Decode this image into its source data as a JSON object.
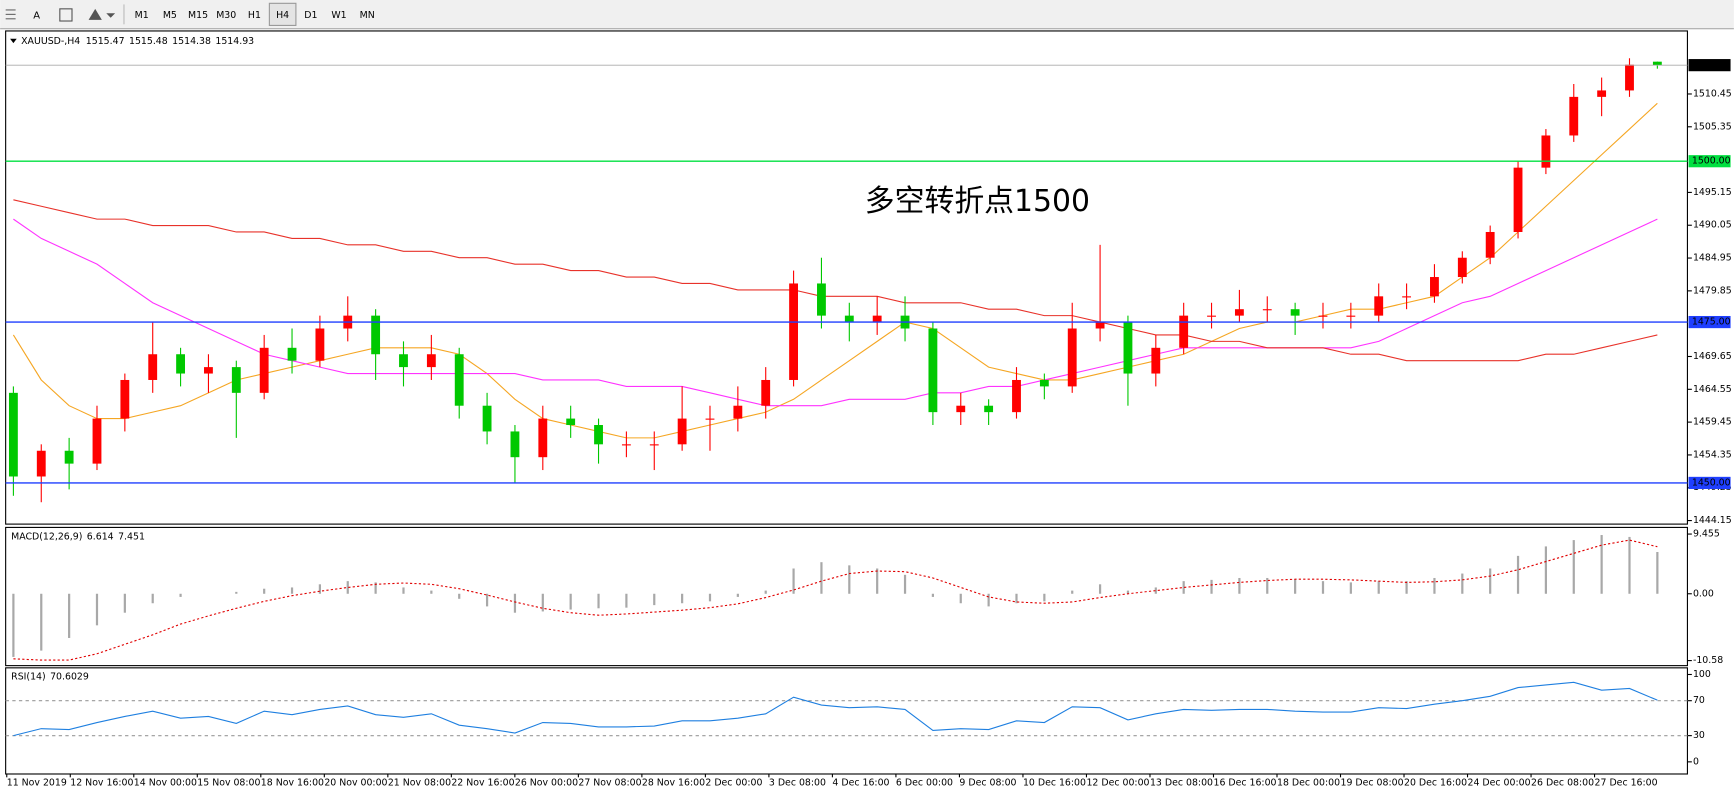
{
  "toolbar": {
    "text_tool": "A",
    "timeframes": [
      "M1",
      "M5",
      "M15",
      "M30",
      "H1",
      "H4",
      "D1",
      "W1",
      "MN"
    ]
  },
  "time_axis": {
    "labels": [
      "11 Nov 2019",
      "12 Nov 16:00",
      "14 Nov 00:00",
      "15 Nov 08:00",
      "18 Nov 16:00",
      "20 Nov 00:00",
      "21 Nov 08:00",
      "22 Nov 16:00",
      "26 Nov 00:00",
      "27 Nov 08:00",
      "28 Nov 16:00",
      "2 Dec 00:00",
      "3 Dec 08:00",
      "4 Dec 16:00",
      "6 Dec 00:00",
      "9 Dec 08:00",
      "10 Dec 16:00",
      "12 Dec 00:00",
      "13 Dec 08:00",
      "16 Dec 16:00",
      "18 Dec 00:00",
      "19 Dec 08:00",
      "20 Dec 16:00",
      "24 Dec 00:00",
      "26 Dec 08:00",
      "27 Dec 16:00"
    ]
  },
  "chart_data": [
    {
      "type": "candlestick",
      "symbol": "XAUUSD-,H4",
      "quote": [
        1515.47,
        1515.48,
        1514.38,
        1514.93
      ],
      "annotation": "多空转折点1500",
      "annotation_color": "#e5321e",
      "up_color": "#ff0000",
      "down_color": "#00c800",
      "ohlc": [
        [
          1464,
          1465,
          1448,
          1451
        ],
        [
          1451,
          1456,
          1447,
          1455
        ],
        [
          1455,
          1457,
          1449,
          1453
        ],
        [
          1453,
          1462,
          1452,
          1460
        ],
        [
          1460,
          1467,
          1458,
          1466
        ],
        [
          1466,
          1475,
          1464,
          1470
        ],
        [
          1470,
          1471,
          1465,
          1467
        ],
        [
          1467,
          1470,
          1464,
          1468
        ],
        [
          1468,
          1469,
          1457,
          1464
        ],
        [
          1464,
          1473,
          1463,
          1471
        ],
        [
          1471,
          1474,
          1467,
          1469
        ],
        [
          1469,
          1476,
          1468,
          1474
        ],
        [
          1474,
          1479,
          1472,
          1476
        ],
        [
          1476,
          1477,
          1466,
          1470
        ],
        [
          1470,
          1472,
          1465,
          1468
        ],
        [
          1468,
          1473,
          1466,
          1470
        ],
        [
          1470,
          1471,
          1460,
          1462
        ],
        [
          1462,
          1464,
          1456,
          1458
        ],
        [
          1458,
          1459,
          1450,
          1454
        ],
        [
          1454,
          1462,
          1452,
          1460
        ],
        [
          1460,
          1462,
          1457,
          1459
        ],
        [
          1459,
          1460,
          1453,
          1456
        ],
        [
          1456,
          1458,
          1454,
          1456
        ],
        [
          1456,
          1458,
          1452,
          1456
        ],
        [
          1456,
          1465,
          1455,
          1460
        ],
        [
          1460,
          1462,
          1455,
          1460
        ],
        [
          1460,
          1465,
          1458,
          1462
        ],
        [
          1462,
          1468,
          1460,
          1466
        ],
        [
          1466,
          1483,
          1465,
          1481
        ],
        [
          1481,
          1485,
          1474,
          1476
        ],
        [
          1476,
          1478,
          1472,
          1475
        ],
        [
          1475,
          1479,
          1473,
          1476
        ],
        [
          1476,
          1479,
          1472,
          1474
        ],
        [
          1474,
          1475,
          1459,
          1461
        ],
        [
          1461,
          1464,
          1459,
          1462
        ],
        [
          1462,
          1463,
          1459,
          1461
        ],
        [
          1461,
          1468,
          1460,
          1466
        ],
        [
          1466,
          1467,
          1463,
          1465
        ],
        [
          1465,
          1478,
          1464,
          1474
        ],
        [
          1474,
          1487,
          1472,
          1475
        ],
        [
          1475,
          1476,
          1462,
          1467
        ],
        [
          1467,
          1473,
          1465,
          1471
        ],
        [
          1471,
          1478,
          1470,
          1476
        ],
        [
          1476,
          1478,
          1474,
          1476
        ],
        [
          1476,
          1480,
          1475,
          1477
        ],
        [
          1477,
          1479,
          1475,
          1477
        ],
        [
          1477,
          1478,
          1473,
          1476
        ],
        [
          1476,
          1478,
          1474,
          1476
        ],
        [
          1476,
          1478,
          1474,
          1476
        ],
        [
          1476,
          1481,
          1475,
          1479
        ],
        [
          1479,
          1481,
          1477,
          1479
        ],
        [
          1479,
          1484,
          1478,
          1482
        ],
        [
          1482,
          1486,
          1481,
          1485
        ],
        [
          1485,
          1490,
          1484,
          1489
        ],
        [
          1489,
          1500,
          1488,
          1499
        ],
        [
          1499,
          1505,
          1498,
          1504
        ],
        [
          1504,
          1512,
          1503,
          1510
        ],
        [
          1510,
          1513,
          1507,
          1511
        ],
        [
          1511,
          1516,
          1510,
          1515
        ],
        [
          1515.47,
          1515.48,
          1514.38,
          1514.93
        ]
      ],
      "series": [
        {
          "color": "#f5a623",
          "values": [
            1473,
            1466,
            1462,
            1460,
            1460,
            1461,
            1462,
            1464,
            1466,
            1467,
            1468,
            1469,
            1470,
            1471,
            1471,
            1471,
            1470,
            1467,
            1463,
            1460,
            1459,
            1458,
            1457,
            1457,
            1458,
            1459,
            1460,
            1461,
            1463,
            1466,
            1469,
            1472,
            1475,
            1474,
            1471,
            1468,
            1467,
            1466,
            1466,
            1467,
            1468,
            1469,
            1470,
            1472,
            1474,
            1475,
            1475,
            1476,
            1477,
            1477,
            1478,
            1479,
            1482,
            1485,
            1489,
            1493,
            1497,
            1501,
            1505,
            1509
          ]
        },
        {
          "color": "#ff33ff",
          "values": [
            1491,
            1488,
            1486,
            1484,
            1481,
            1478,
            1476,
            1474,
            1472,
            1470,
            1469,
            1468,
            1467,
            1467,
            1467,
            1467,
            1467,
            1467,
            1467,
            1466,
            1466,
            1466,
            1465,
            1465,
            1465,
            1464,
            1463,
            1462,
            1462,
            1462,
            1463,
            1463,
            1463,
            1464,
            1464,
            1465,
            1465,
            1466,
            1467,
            1468,
            1469,
            1470,
            1471,
            1471,
            1471,
            1471,
            1471,
            1471,
            1471,
            1472,
            1474,
            1476,
            1478,
            1479,
            1481,
            1483,
            1485,
            1487,
            1489,
            1491
          ]
        },
        {
          "color": "#e8322a",
          "values": [
            1494,
            1493,
            1492,
            1491,
            1491,
            1490,
            1490,
            1490,
            1489,
            1489,
            1488,
            1488,
            1487,
            1487,
            1486,
            1486,
            1485,
            1485,
            1484,
            1484,
            1483,
            1483,
            1482,
            1482,
            1481,
            1481,
            1480,
            1480,
            1480,
            1479,
            1479,
            1479,
            1478,
            1478,
            1478,
            1477,
            1477,
            1476,
            1476,
            1475,
            1474,
            1473,
            1473,
            1472,
            1472,
            1471,
            1471,
            1471,
            1470,
            1470,
            1469,
            1469,
            1469,
            1469,
            1469,
            1470,
            1470,
            1471,
            1472,
            1473
          ]
        }
      ],
      "levels": [
        {
          "value": 1500,
          "label": "1500.00",
          "color": "#00e040"
        },
        {
          "value": 1475,
          "label": "1475.00",
          "color": "#1f3fff"
        },
        {
          "value": 1450,
          "label": "1450.00",
          "color": "#1f3fff"
        }
      ],
      "last_price": 1514.93,
      "ylim": [
        1443.6,
        1519.9
      ],
      "yticks": [
        1510.45,
        1505.35,
        1495.15,
        1490.05,
        1484.95,
        1479.85,
        1469.65,
        1464.55,
        1459.45,
        1454.35,
        1449.25,
        1444.15
      ]
    },
    {
      "type": "macd",
      "title": "MACD(12,26,9)",
      "main_value": 6.614,
      "signal_value": 7.451,
      "histogram_color": "#a8a8a8",
      "signal_color": "#e00000",
      "histogram": [
        -10,
        -9,
        -7,
        -5,
        -3,
        -1.5,
        -0.5,
        0,
        0.3,
        0.8,
        1,
        1.5,
        2,
        1.8,
        1,
        0.5,
        -0.8,
        -2,
        -3,
        -2.8,
        -2.5,
        -2.3,
        -2.2,
        -1.8,
        -1.5,
        -1.2,
        -0.5,
        0.5,
        4,
        5,
        4.5,
        4,
        3,
        -0.5,
        -1.5,
        -2,
        -1.5,
        -1.2,
        0.5,
        1.5,
        0.5,
        1,
        2,
        2.2,
        2.5,
        2.5,
        2.3,
        2,
        1.8,
        2,
        2,
        2.5,
        3.2,
        4,
        6,
        7.5,
        8.5,
        9.3,
        9,
        6.614
      ],
      "signal": [
        -10.3,
        -10.5,
        -10.5,
        -9.5,
        -8,
        -6.5,
        -4.8,
        -3.5,
        -2.3,
        -1.2,
        -0.3,
        0.4,
        1,
        1.5,
        1.7,
        1.5,
        0.8,
        -0.2,
        -1.3,
        -2.3,
        -3,
        -3.4,
        -3.2,
        -2.9,
        -2.6,
        -2.2,
        -1.6,
        -0.6,
        0.6,
        2,
        3.2,
        3.6,
        3.5,
        2.5,
        1,
        -0.5,
        -1.3,
        -1.5,
        -1.3,
        -0.6,
        0,
        0.5,
        1,
        1.4,
        1.8,
        2.1,
        2.3,
        2.3,
        2.2,
        2,
        1.8,
        1.9,
        2.2,
        2.8,
        3.8,
        5.1,
        6.4,
        7.7,
        8.5,
        7.451
      ],
      "ylim": [
        -11.38,
        10.33
      ],
      "yticks": [
        9.455,
        {
          "value": 0,
          "label": "0.00"
        },
        -10.58
      ]
    },
    {
      "type": "rsi",
      "title": "RSI(14)",
      "last_value": 70.6029,
      "color": "#1e7fe0",
      "values": [
        30,
        38,
        37,
        45,
        52,
        58,
        50,
        52,
        44,
        58,
        54,
        60,
        64,
        54,
        51,
        55,
        42,
        38,
        33,
        45,
        44,
        40,
        40,
        41,
        47,
        47,
        50,
        55,
        74,
        65,
        62,
        63,
        60,
        36,
        38,
        37,
        47,
        45,
        63,
        62,
        48,
        55,
        60,
        59,
        60,
        60,
        58,
        57,
        57,
        62,
        61,
        66,
        70,
        75,
        85,
        88,
        91,
        82,
        84,
        70.6029
      ],
      "levels": [
        70,
        30
      ],
      "ylim": [
        -13.9,
        107.6
      ],
      "yticks": [
        100,
        70,
        30,
        0
      ]
    }
  ]
}
